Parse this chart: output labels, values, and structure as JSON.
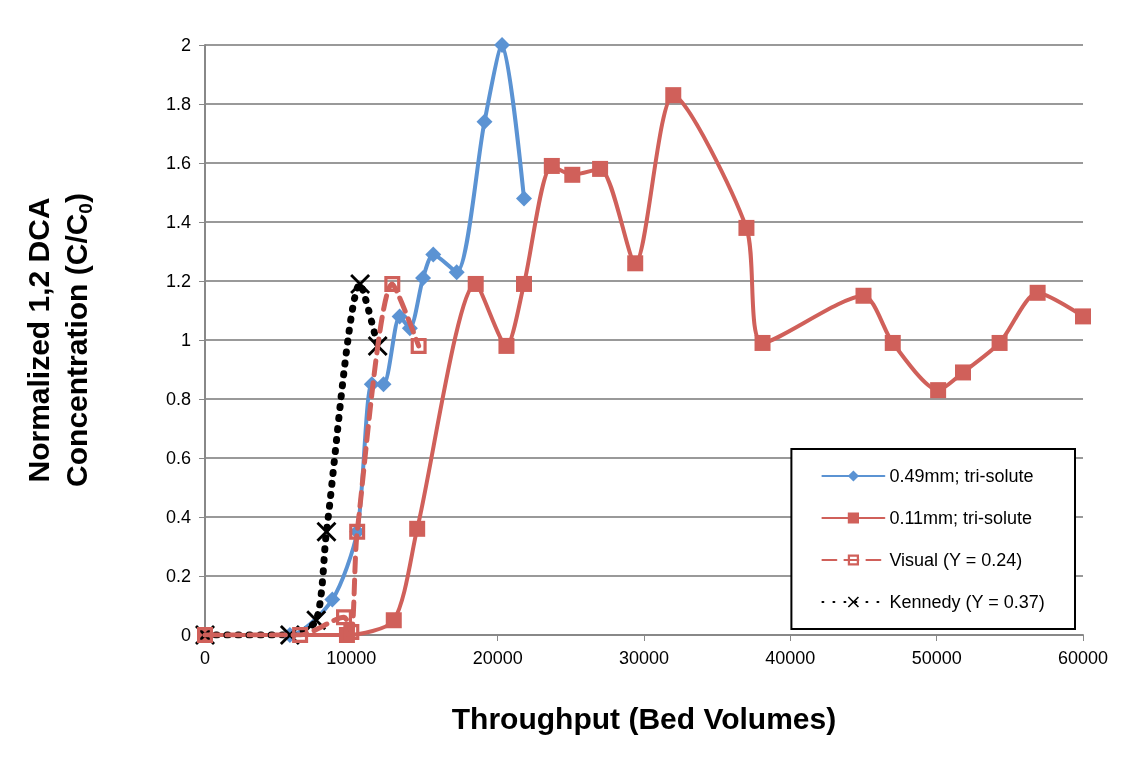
{
  "chart_data": {
    "type": "line",
    "xlabel": "Throughput (Bed Volumes)",
    "ylabel": "Normalized 1,2 DCA\nConcentration (C/C$_{0}$)",
    "xlim": [
      0,
      60000
    ],
    "xticks": [
      0,
      10000,
      20000,
      30000,
      40000,
      50000,
      60000
    ],
    "ylim": [
      0,
      2
    ],
    "yticks": [
      0,
      0.2,
      0.4,
      0.6,
      0.8,
      1,
      1.2,
      1.4,
      1.6,
      1.8,
      2
    ],
    "grid": "y",
    "legend": "bottom right",
    "series": [
      {
        "name": "0.49mm; tri-solute",
        "color": "#5b93d3",
        "marker": "diamond",
        "line_style": "solid",
        "x": [
          0,
          5800,
          8700,
          10400,
          11400,
          12200,
          13300,
          14000,
          14900,
          15600,
          17200,
          19100,
          20300,
          21800
        ],
        "values": [
          0,
          0,
          0.12,
          0.35,
          0.85,
          0.85,
          1.08,
          1.04,
          1.21,
          1.29,
          1.23,
          1.74,
          2,
          1.48
        ]
      },
      {
        "name": "0.11mm; tri-solute",
        "color": "#d0605a",
        "marker": "square",
        "line_style": "solid",
        "x": [
          0,
          9700,
          12900,
          14500,
          18500,
          20600,
          21800,
          23700,
          25100,
          27000,
          29400,
          32000,
          37000,
          38100,
          45000,
          47000,
          50100,
          51800,
          54300,
          56900,
          60000
        ],
        "values": [
          0,
          0,
          0.05,
          0.36,
          1.19,
          0.98,
          1.19,
          1.59,
          1.56,
          1.58,
          1.26,
          1.83,
          1.38,
          0.99,
          1.15,
          0.99,
          0.83,
          0.89,
          0.99,
          1.16,
          1.08
        ]
      },
      {
        "name": "Visual (Y = 0.24)",
        "color": "#d0605a",
        "marker": "square",
        "line_style": "dashed",
        "x": [
          0,
          6500,
          9500,
          10000,
          10400,
          12800,
          14600
        ],
        "values": [
          0,
          0,
          0.06,
          0.01,
          0.35,
          1.19,
          0.98
        ]
      },
      {
        "name": "Kennedy (Y = 0.37)",
        "color": "#000000",
        "marker": "cross",
        "line_style": "dotted",
        "x": [
          0,
          5800,
          7600,
          8300,
          10600,
          11800
        ],
        "values": [
          0,
          0,
          0.05,
          0.35,
          1.19,
          0.98
        ]
      }
    ]
  }
}
